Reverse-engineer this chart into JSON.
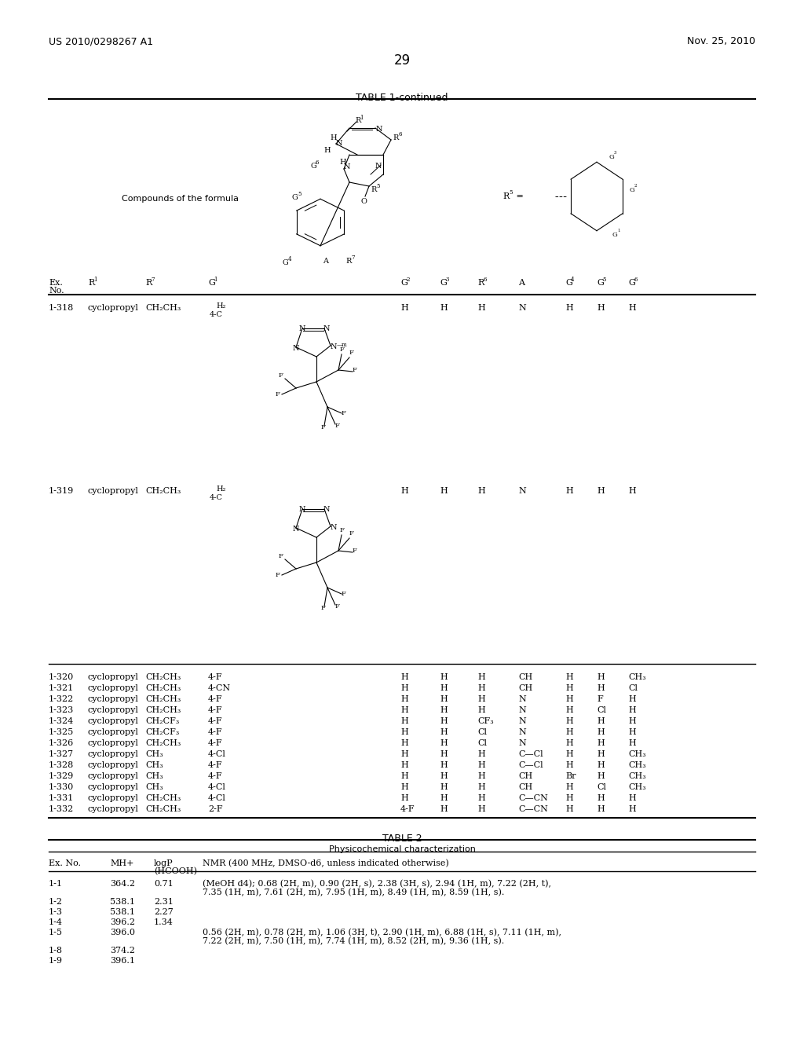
{
  "page_number": "29",
  "patent_left": "US 2010/0298267 A1",
  "patent_right": "Nov. 25, 2010",
  "table_title": "TABLE 1-continued",
  "table2_title": "TABLE 2",
  "table2_subtitle": "Physicochemical characterization",
  "bg_color": "#ffffff",
  "text_color": "#000000",
  "data_rows_simple": [
    [
      "1-320",
      "cyclopropyl",
      "CH₂CH₃",
      "4-F",
      "H",
      "H",
      "H",
      "CH",
      "H",
      "H",
      "CH₃"
    ],
    [
      "1-321",
      "cyclopropyl",
      "CH₂CH₃",
      "4-CN",
      "H",
      "H",
      "H",
      "CH",
      "H",
      "H",
      "Cl"
    ],
    [
      "1-322",
      "cyclopropyl",
      "CH₂CH₃",
      "4-F",
      "H",
      "H",
      "H",
      "N",
      "H",
      "F",
      "H"
    ],
    [
      "1-323",
      "cyclopropyl",
      "CH₂CH₃",
      "4-F",
      "H",
      "H",
      "H",
      "N",
      "H",
      "Cl",
      "H"
    ],
    [
      "1-324",
      "cyclopropyl",
      "CH₂CF₃",
      "4-F",
      "H",
      "H",
      "CF₃",
      "N",
      "H",
      "H",
      "H"
    ],
    [
      "1-325",
      "cyclopropyl",
      "CH₂CF₃",
      "4-F",
      "H",
      "H",
      "Cl",
      "N",
      "H",
      "H",
      "H"
    ],
    [
      "1-326",
      "cyclopropyl",
      "CH₂CH₃",
      "4-F",
      "H",
      "H",
      "Cl",
      "N",
      "H",
      "H",
      "H"
    ],
    [
      "1-327",
      "cyclopropyl",
      "CH₃",
      "4-Cl",
      "H",
      "H",
      "H",
      "C—Cl",
      "H",
      "H",
      "CH₃"
    ],
    [
      "1-328",
      "cyclopropyl",
      "CH₃",
      "4-F",
      "H",
      "H",
      "H",
      "C—Cl",
      "H",
      "H",
      "CH₃"
    ],
    [
      "1-329",
      "cyclopropyl",
      "CH₃",
      "4-F",
      "H",
      "H",
      "H",
      "CH",
      "Br",
      "H",
      "CH₃"
    ],
    [
      "1-330",
      "cyclopropyl",
      "CH₃",
      "4-Cl",
      "H",
      "H",
      "H",
      "CH",
      "H",
      "Cl",
      "CH₃"
    ],
    [
      "1-331",
      "cyclopropyl",
      "CH₂CH₃",
      "4-Cl",
      "H",
      "H",
      "H",
      "C—CN",
      "H",
      "H",
      "H"
    ],
    [
      "1-332",
      "cyclopropyl",
      "CH₂CH₃",
      "2-F",
      "4-F",
      "H",
      "H",
      "C—CN",
      "H",
      "H",
      "H"
    ]
  ],
  "table2_entries": [
    [
      "1-1",
      "364.2",
      "0.71",
      "(MeOH d4); 0.68 (2H, m), 0.90 (2H, s), 2.38 (3H, s), 2.94 (1H, m), 7.22 (2H, t),",
      "7.35 (1H, m), 7.61 (2H, m), 7.95 (1H, m), 8.49 (1H, m), 8.59 (1H, s)."
    ],
    [
      "1-2",
      "538.1",
      "2.31",
      "",
      ""
    ],
    [
      "1-3",
      "538.1",
      "2.27",
      "",
      ""
    ],
    [
      "1-4",
      "396.2",
      "1.34",
      "",
      ""
    ],
    [
      "1-5",
      "396.0",
      "",
      "0.56 (2H, m), 0.78 (2H, m), 1.06 (3H, t), 2.90 (1H, m), 6.88 (1H, s), 7.11 (1H, m),",
      "7.22 (2H, m), 7.50 (1H, m), 7.74 (1H, m), 8.52 (2H, m), 9.36 (1H, s)."
    ],
    [
      "1-8",
      "374.2",
      "",
      "",
      ""
    ],
    [
      "1-9",
      "396.1",
      "",
      "",
      ""
    ]
  ]
}
